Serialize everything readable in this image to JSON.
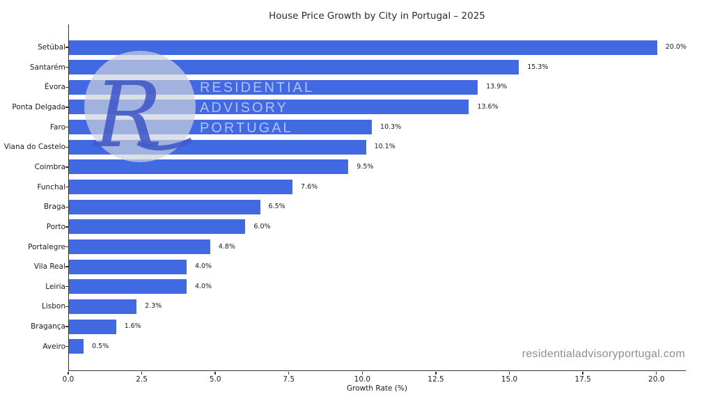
{
  "title": "House Price Growth by City in Portugal – 2025",
  "chart_data": {
    "type": "bar",
    "orientation": "horizontal",
    "title": "House Price Growth by City in Portugal – 2025",
    "xlabel": "Growth Rate (%)",
    "ylabel": "",
    "categories": [
      "Setúbal",
      "Santarém",
      "Évora",
      "Ponta Delgada",
      "Faro",
      "Viana do Castelo",
      "Coimbra",
      "Funchal",
      "Braga",
      "Porto",
      "Portalegre",
      "Vila Real",
      "Leiria",
      "Lisbon",
      "Bragança",
      "Aveiro"
    ],
    "values": [
      20.0,
      15.3,
      13.9,
      13.6,
      10.3,
      10.1,
      9.5,
      7.6,
      6.5,
      6.0,
      4.8,
      4.0,
      4.0,
      2.3,
      1.6,
      0.5
    ],
    "value_labels": [
      "20.0%",
      "15.3%",
      "13.9%",
      "13.6%",
      "10.3%",
      "10.1%",
      "9.5%",
      "7.6%",
      "6.5%",
      "6.0%",
      "4.8%",
      "4.0%",
      "4.0%",
      "2.3%",
      "1.6%",
      "0.5%"
    ],
    "xticks": [
      0.0,
      2.5,
      5.0,
      7.5,
      10.0,
      12.5,
      15.0,
      17.5,
      20.0
    ],
    "xtick_labels": [
      "0.0",
      "2.5",
      "5.0",
      "7.5",
      "10.0",
      "12.5",
      "15.0",
      "17.5",
      "20.0"
    ],
    "xlim": [
      0,
      21
    ],
    "grid": false,
    "legend": null,
    "bar_color": "#4169E1",
    "axis_color": "#333333"
  },
  "watermark": {
    "monogram": "R",
    "lines": [
      "RESIDENTIAL",
      "ADVISORY",
      "PORTUGAL"
    ]
  },
  "footer": {
    "website": "residentialadvisoryportugal.com"
  }
}
